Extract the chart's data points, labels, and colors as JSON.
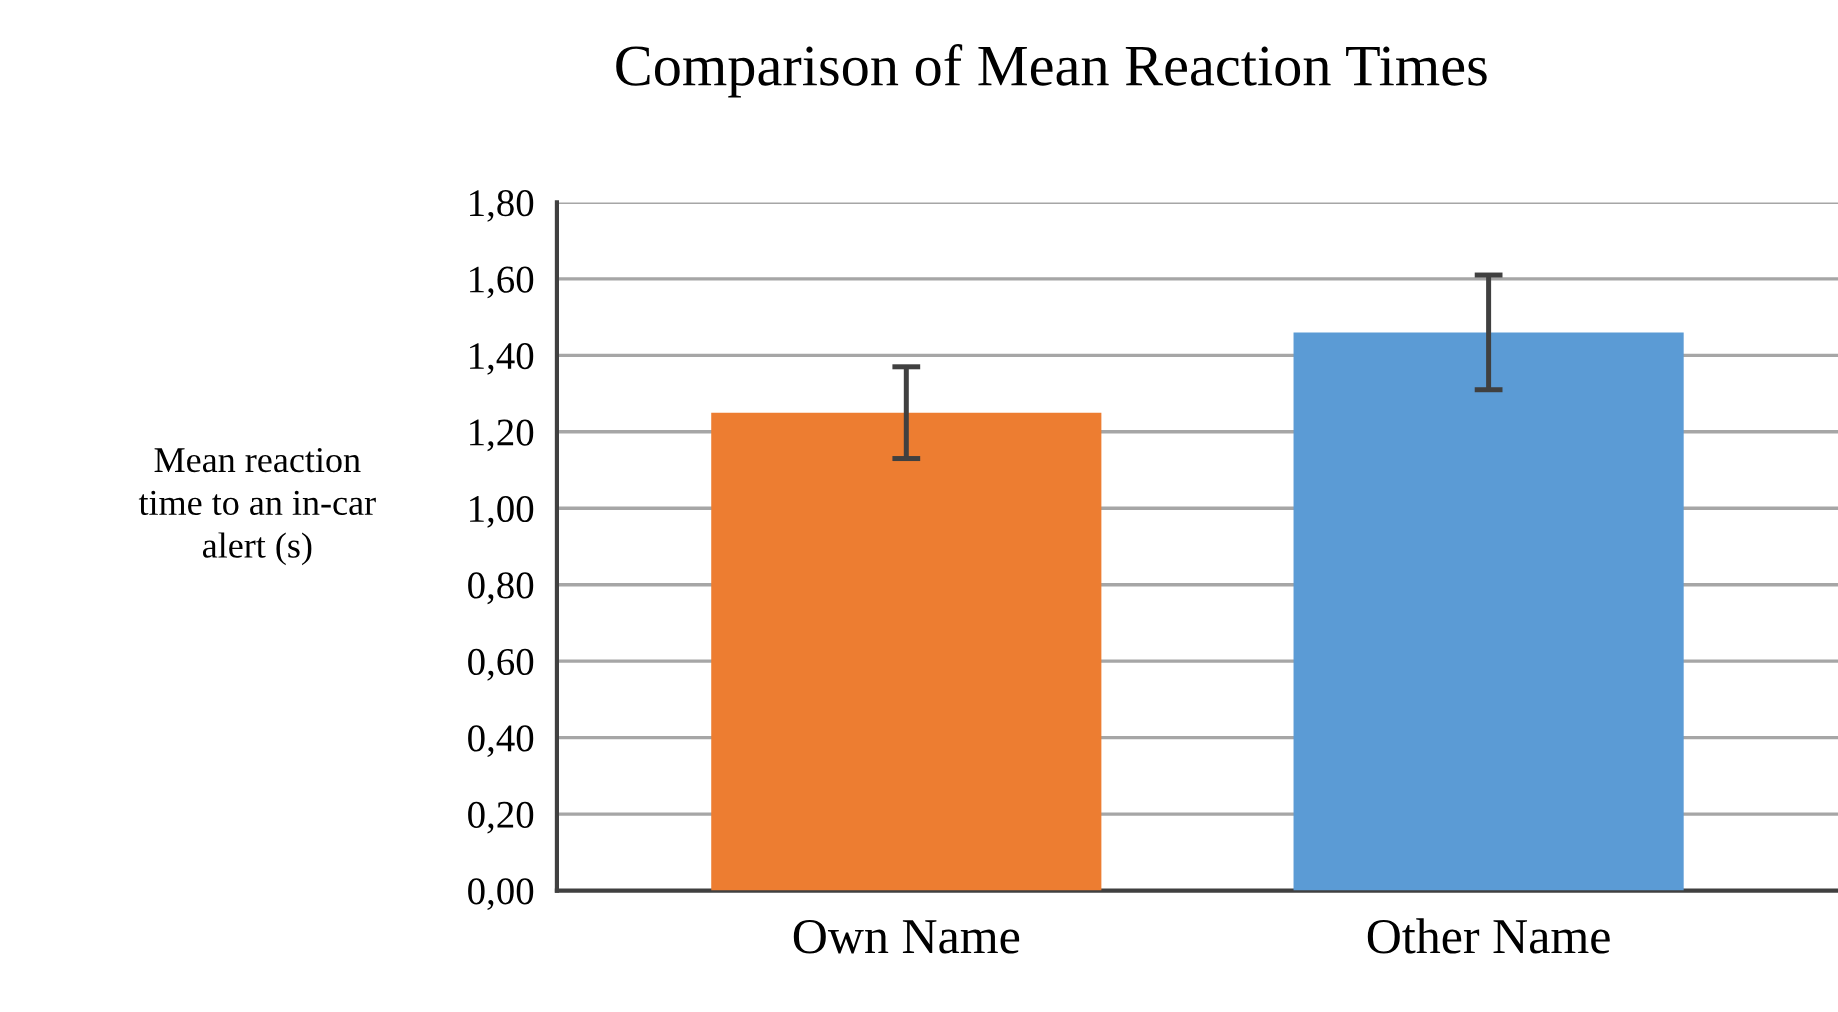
{
  "chart_data": {
    "type": "bar",
    "title": "Comparison of Mean Reaction Times",
    "ylabel": "Mean reaction\ntime to an in-car\nalert (s)",
    "categories": [
      "Own Name",
      "Other Name"
    ],
    "values": [
      1.25,
      1.46
    ],
    "colors": [
      "#ed7d31",
      "#5b9bd5"
    ],
    "errors": [
      0.12,
      0.15
    ],
    "ylim": [
      0,
      1.8
    ],
    "yticks": [
      {
        "value": 0,
        "label": "0,00"
      },
      {
        "value": 0.2,
        "label": "0,20"
      },
      {
        "value": 0.4,
        "label": "0,40"
      },
      {
        "value": 0.6,
        "label": "0,60"
      },
      {
        "value": 0.8,
        "label": "0,80"
      },
      {
        "value": 1.0,
        "label": "1,00"
      },
      {
        "value": 1.2,
        "label": "1,20"
      },
      {
        "value": 1.4,
        "label": "1,40"
      },
      {
        "value": 1.6,
        "label": "1,60"
      },
      {
        "value": 1.8,
        "label": "1,80"
      }
    ],
    "grid": "y"
  }
}
